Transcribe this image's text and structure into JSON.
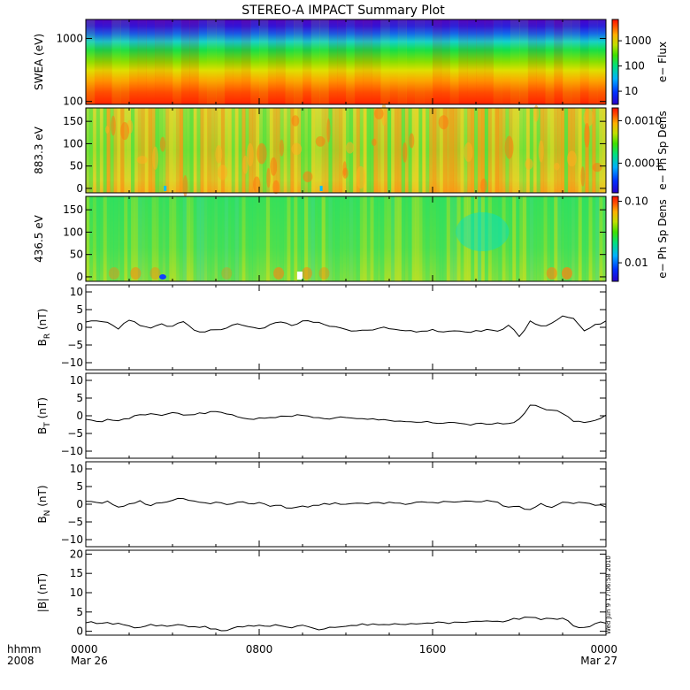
{
  "chart_data": {
    "type": "line",
    "title": "STEREO-A IMPACT Summary Plot",
    "stamp": "Wed Jun 9 17:06:58 2010",
    "time_axis": {
      "row1_label": "hhmm",
      "row2_label": "2008",
      "tick_values": [
        0,
        8,
        16,
        24
      ],
      "ticks": [
        {
          "time": "0000",
          "date": "Mar 26"
        },
        {
          "time": "0800",
          "date": ""
        },
        {
          "time": "1600",
          "date": ""
        },
        {
          "time": "0000",
          "date": "Mar 27"
        }
      ],
      "range_hours": [
        0,
        24
      ]
    },
    "spectrograms": [
      {
        "id": "swea",
        "ylabel": "SWEA (eV)",
        "yscale": "log",
        "ylim": [
          90,
          2000
        ],
        "yticks": [
          100,
          1000
        ],
        "ytick_labels": [
          "100",
          "1000"
        ],
        "colorbar_label": "e− Flux",
        "colorbar_ticks": [
          "10",
          "100",
          "1000"
        ],
        "colorbar_scale": "log",
        "colorbar_range": [
          3,
          7000
        ]
      },
      {
        "id": "pad883",
        "ylabel": "883.3 eV",
        "yscale": "linear",
        "ylim": [
          -10,
          180
        ],
        "yticks": [
          0,
          50,
          100,
          150
        ],
        "ytick_labels": [
          "0",
          "50",
          "100",
          "150"
        ],
        "colorbar_label": "e− Ph Sp Dens",
        "colorbar_ticks": [
          "0.0001",
          "0.0010"
        ],
        "colorbar_scale": "log",
        "colorbar_range": [
          2e-05,
          0.002
        ]
      },
      {
        "id": "pad436",
        "ylabel": "436.5 eV",
        "yscale": "linear",
        "ylim": [
          -10,
          180
        ],
        "yticks": [
          0,
          50,
          100,
          150
        ],
        "ytick_labels": [
          "0",
          "50",
          "100",
          "150"
        ],
        "colorbar_label": "e− Ph Sp Dens",
        "colorbar_ticks": [
          "0.01",
          "0.10"
        ],
        "colorbar_scale": "log",
        "colorbar_range": [
          0.005,
          0.12
        ]
      }
    ],
    "line_panels": [
      {
        "id": "br",
        "ylabel_main": "B",
        "ylabel_sub": "R",
        "ylabel_unit": " (nT)",
        "ylim": [
          -12,
          12
        ],
        "yticks": [
          -10,
          -5,
          0,
          5,
          10
        ],
        "ytick_labels": [
          "−10",
          "−5",
          "0",
          "5",
          "10"
        ],
        "x_hours": [
          0,
          0.5,
          1,
          1.5,
          2,
          2.5,
          3,
          3.5,
          4,
          4.5,
          5,
          5.5,
          6,
          6.5,
          7,
          7.5,
          8,
          8.5,
          9,
          9.5,
          10,
          10.5,
          11,
          11.5,
          12,
          12.5,
          13,
          13.5,
          14,
          14.5,
          15,
          15.5,
          16,
          16.5,
          17,
          17.5,
          18,
          18.5,
          19,
          19.5,
          20,
          20.5,
          21,
          21.5,
          22,
          22.5,
          23,
          23.5,
          24
        ],
        "values": [
          1.5,
          1.8,
          1.4,
          -0.5,
          2.0,
          0.5,
          -0.2,
          1.0,
          0.3,
          1.6,
          -0.8,
          -1.3,
          -0.7,
          -0.2,
          1.0,
          0.2,
          -0.4,
          0.8,
          1.5,
          0.5,
          1.8,
          1.4,
          0.8,
          0.2,
          -0.6,
          -1.0,
          -0.8,
          -0.3,
          -0.4,
          -0.8,
          -0.9,
          -1.1,
          -0.6,
          -1.3,
          -1.0,
          -1.3,
          -0.9,
          -0.6,
          -1.1,
          0.6,
          -2.6,
          1.8,
          0.4,
          1.2,
          3.2,
          2.5,
          -1.0,
          0.8,
          1.8
        ]
      },
      {
        "id": "bt",
        "ylabel_main": "B",
        "ylabel_sub": "T",
        "ylabel_unit": " (nT)",
        "ylim": [
          -12,
          12
        ],
        "yticks": [
          -10,
          -5,
          0,
          5,
          10
        ],
        "ytick_labels": [
          "−10",
          "−5",
          "0",
          "5",
          "10"
        ],
        "x_hours": [
          0,
          0.5,
          1,
          1.5,
          2,
          2.5,
          3,
          3.5,
          4,
          4.5,
          5,
          5.5,
          6,
          6.5,
          7,
          7.5,
          8,
          8.5,
          9,
          9.5,
          10,
          10.5,
          11,
          11.5,
          12,
          12.5,
          13,
          13.5,
          14,
          14.5,
          15,
          15.5,
          16,
          16.5,
          17,
          17.5,
          18,
          18.5,
          19,
          19.5,
          20,
          20.5,
          21,
          21.5,
          22,
          22.5,
          23,
          23.5,
          24
        ],
        "values": [
          -1.0,
          -1.6,
          -1.0,
          -1.4,
          -0.8,
          0.3,
          0.6,
          0.1,
          0.9,
          0.2,
          0.3,
          0.6,
          1.2,
          0.5,
          -0.3,
          -0.9,
          -0.6,
          -0.5,
          -0.1,
          -0.2,
          0.1,
          -0.5,
          -0.8,
          -0.6,
          -0.5,
          -0.8,
          -1.0,
          -1.2,
          -1.3,
          -1.5,
          -1.7,
          -1.8,
          -2.0,
          -2.1,
          -1.9,
          -2.3,
          -2.2,
          -2.4,
          -2.0,
          -2.2,
          -0.9,
          3.0,
          2.3,
          1.6,
          0.6,
          -1.6,
          -1.9,
          -1.3,
          0.2
        ]
      },
      {
        "id": "bn",
        "ylabel_main": "B",
        "ylabel_sub": "N",
        "ylabel_unit": " (nT)",
        "ylim": [
          -12,
          12
        ],
        "yticks": [
          -10,
          -5,
          0,
          5,
          10
        ],
        "ytick_labels": [
          "−10",
          "−5",
          "0",
          "5",
          "10"
        ],
        "x_hours": [
          0,
          0.5,
          1,
          1.5,
          2,
          2.5,
          3,
          3.5,
          4,
          4.5,
          5,
          5.5,
          6,
          6.5,
          7,
          7.5,
          8,
          8.5,
          9,
          9.5,
          10,
          10.5,
          11,
          11.5,
          12,
          12.5,
          13,
          13.5,
          14,
          14.5,
          15,
          15.5,
          16,
          16.5,
          17,
          17.5,
          18,
          18.5,
          19,
          19.5,
          20,
          20.5,
          21,
          21.5,
          22,
          22.5,
          23,
          23.5,
          24
        ],
        "values": [
          0.8,
          0.5,
          0.9,
          -0.8,
          0.1,
          1.0,
          -0.4,
          0.4,
          1.1,
          1.6,
          0.9,
          0.4,
          0.6,
          -0.1,
          0.6,
          0.2,
          0.5,
          -0.6,
          -0.3,
          -1.1,
          -0.5,
          -0.3,
          0.2,
          0.4,
          0.0,
          0.3,
          0.1,
          0.5,
          0.6,
          0.3,
          0.2,
          0.7,
          0.5,
          0.8,
          0.6,
          0.9,
          0.7,
          1.1,
          0.6,
          -0.8,
          -0.6,
          -1.5,
          0.2,
          -0.9,
          0.6,
          0.2,
          0.4,
          -0.3,
          -0.8
        ]
      },
      {
        "id": "bmag",
        "ylabel_main": "|B| (nT)",
        "ylabel_sub": "",
        "ylabel_unit": "",
        "ylim": [
          -1,
          21
        ],
        "yticks": [
          0,
          5,
          10,
          15,
          20
        ],
        "ytick_labels": [
          "0",
          "5",
          "10",
          "15",
          "20"
        ],
        "x_hours": [
          0,
          0.5,
          1,
          1.5,
          2,
          2.5,
          3,
          3.5,
          4,
          4.5,
          5,
          5.5,
          6,
          6.5,
          7,
          7.5,
          8,
          8.5,
          9,
          9.5,
          10,
          10.5,
          11,
          11.5,
          12,
          12.5,
          13,
          13.5,
          14,
          14.5,
          15,
          15.5,
          16,
          16.5,
          17,
          17.5,
          18,
          18.5,
          19,
          19.5,
          20,
          20.5,
          21,
          21.5,
          22,
          22.5,
          23,
          23.5,
          24
        ],
        "values": [
          2.2,
          2.0,
          2.3,
          2.1,
          1.4,
          1.0,
          1.8,
          1.6,
          1.5,
          1.6,
          1.2,
          1.3,
          0.6,
          0.2,
          1.2,
          1.5,
          1.6,
          1.3,
          1.4,
          0.9,
          1.6,
          0.8,
          0.6,
          1.0,
          1.3,
          1.5,
          1.6,
          1.7,
          1.7,
          1.8,
          2.0,
          2.0,
          2.1,
          2.3,
          2.4,
          2.3,
          2.6,
          2.7,
          2.6,
          2.8,
          3.1,
          3.6,
          3.0,
          3.3,
          3.4,
          1.4,
          1.0,
          2.0,
          2.1
        ]
      }
    ]
  }
}
